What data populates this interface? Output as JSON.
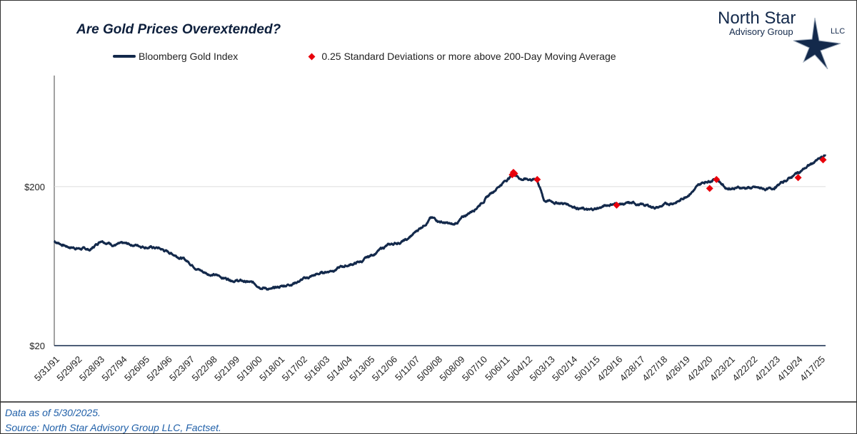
{
  "chart_data": {
    "type": "line",
    "title": "Are Gold Prices Overextended?",
    "y_scale": "log",
    "ylim": [
      20,
      1000
    ],
    "y_ticks": [
      {
        "value": 20,
        "label": "$20"
      },
      {
        "value": 200,
        "label": "$200"
      }
    ],
    "x_tick_labels": [
      "5/31/91",
      "5/29/92",
      "5/28/93",
      "5/27/94",
      "5/26/95",
      "5/24/96",
      "5/23/97",
      "5/22/98",
      "5/21/99",
      "5/19/00",
      "5/18/01",
      "5/17/02",
      "5/16/03",
      "5/14/04",
      "5/13/05",
      "5/12/06",
      "5/11/07",
      "5/09/08",
      "5/08/09",
      "5/07/10",
      "5/06/11",
      "5/04/12",
      "5/03/13",
      "5/02/14",
      "5/01/15",
      "4/29/16",
      "4/28/17",
      "4/27/18",
      "4/26/19",
      "4/24/20",
      "4/23/21",
      "4/22/22",
      "4/21/23",
      "4/19/24",
      "4/17/25"
    ],
    "xlim": [
      1991.41,
      2025.41
    ],
    "legend_placement": "top",
    "grid": "horizontal at $200",
    "series": [
      {
        "name": "Bloomberg Gold Index",
        "color": "#13294b",
        "x": [
          1991.4,
          1992,
          1993,
          1993.5,
          1994,
          1995,
          1996,
          1997,
          1998,
          1999,
          2000,
          2001,
          2002,
          2003,
          2004,
          2005,
          2006,
          2007,
          2008,
          2009,
          2010,
          2011,
          2011.7,
          2012,
          2012.7,
          2013,
          2014,
          2015,
          2016,
          2017,
          2018,
          2019,
          2020,
          2020.6,
          2021,
          2022,
          2023,
          2024,
          2025,
          2025.41
        ],
        "y": [
          91,
          84,
          80,
          93,
          87,
          86,
          82,
          72,
          58,
          53,
          50,
          45,
          50,
          56,
          62,
          68,
          84,
          93,
          127,
          114,
          148,
          202,
          243,
          224,
          222,
          164,
          156,
          141,
          156,
          156,
          148,
          164,
          212,
          228,
          197,
          197,
          192,
          235,
          290,
          312
        ]
      },
      {
        "name": "0.25 Standard Deviations or more above 200-Day Moving Average",
        "color": "#e8000b",
        "type": "scatter",
        "x": [
          2011.6,
          2011.65,
          2011.7,
          2012.7,
          2016.2,
          2020.3,
          2020.6,
          2024.2,
          2025.3
        ],
        "y": [
          238,
          246,
          242,
          222,
          153,
          195,
          222,
          228,
          295
        ]
      }
    ]
  },
  "logo": {
    "line1": "North Star",
    "line2": "Advisory Group",
    "line3": "LLC"
  },
  "footer": {
    "note": "Data as of 5/30/2025.",
    "source": "Source: North Star Advisory Group LLC, Factset."
  }
}
